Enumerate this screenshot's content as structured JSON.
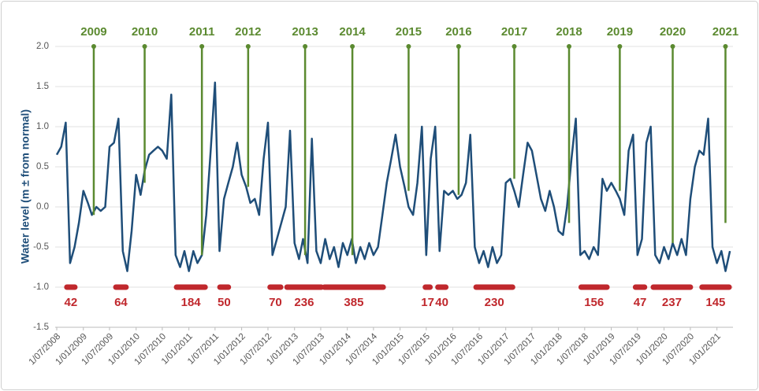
{
  "chart_data": {
    "type": "line",
    "y_label": "Water level (m ± from normal)",
    "xlim": [
      "2008-06-20",
      "2021-04-22"
    ],
    "ylim": [
      -1.5,
      2.0
    ],
    "yticks": [
      {
        "value": 2.0,
        "label": "2.0"
      },
      {
        "value": 1.5,
        "label": "1.5"
      },
      {
        "value": 1.0,
        "label": "1.0"
      },
      {
        "value": 0.5,
        "label": "0.5"
      },
      {
        "value": 0.0,
        "label": "0.0"
      },
      {
        "value": -0.5,
        "label": "-0.5"
      },
      {
        "value": -1.0,
        "label": "-1.0"
      },
      {
        "value": -1.5,
        "label": "-1.5"
      }
    ],
    "xticks": [
      {
        "value": "2008-07-01",
        "label": "1/07/2008"
      },
      {
        "value": "2009-01-01",
        "label": "1/01/2009"
      },
      {
        "value": "2009-07-01",
        "label": "1/07/2009"
      },
      {
        "value": "2010-01-01",
        "label": "1/01/2010"
      },
      {
        "value": "2010-07-01",
        "label": "1/07/2010"
      },
      {
        "value": "2011-01-01",
        "label": "1/01/2011"
      },
      {
        "value": "2011-07-01",
        "label": "1/07/2011"
      },
      {
        "value": "2012-01-01",
        "label": "1/01/2012"
      },
      {
        "value": "2012-07-01",
        "label": "1/07/2012"
      },
      {
        "value": "2013-01-01",
        "label": "1/01/2013"
      },
      {
        "value": "2013-07-01",
        "label": "1/07/2013"
      },
      {
        "value": "2014-01-01",
        "label": "1/01/2014"
      },
      {
        "value": "2014-07-01",
        "label": "1/07/2014"
      },
      {
        "value": "2015-01-01",
        "label": "1/01/2015"
      },
      {
        "value": "2015-07-01",
        "label": "1/07/2015"
      },
      {
        "value": "2016-01-01",
        "label": "1/01/2016"
      },
      {
        "value": "2016-07-01",
        "label": "1/07/2016"
      },
      {
        "value": "2017-01-01",
        "label": "1/01/2017"
      },
      {
        "value": "2017-07-01",
        "label": "1/07/2017"
      },
      {
        "value": "2018-01-01",
        "label": "1/01/2018"
      },
      {
        "value": "2018-07-01",
        "label": "1/07/2018"
      },
      {
        "value": "2019-01-01",
        "label": "1/01/2019"
      },
      {
        "value": "2019-07-01",
        "label": "1/07/2019"
      },
      {
        "value": "2020-01-01",
        "label": "1/01/2020"
      },
      {
        "value": "2020-07-01",
        "label": "1/07/2020"
      },
      {
        "value": "2021-01-01",
        "label": "1/01/2021"
      }
    ],
    "grid": true,
    "x": [
      "2008-07",
      "2008-08",
      "2008-09",
      "2008-10",
      "2008-11",
      "2008-12",
      "2009-01",
      "2009-02",
      "2009-03",
      "2009-04",
      "2009-05",
      "2009-06",
      "2009-07",
      "2009-08",
      "2009-09",
      "2009-10",
      "2009-11",
      "2009-12",
      "2010-01",
      "2010-02",
      "2010-03",
      "2010-04",
      "2010-05",
      "2010-06",
      "2010-07",
      "2010-08",
      "2010-09",
      "2010-10",
      "2010-11",
      "2010-12",
      "2011-01",
      "2011-02",
      "2011-03",
      "2011-04",
      "2011-05",
      "2011-06",
      "2011-07",
      "2011-08",
      "2011-09",
      "2011-10",
      "2011-11",
      "2011-12",
      "2012-01",
      "2012-02",
      "2012-03",
      "2012-04",
      "2012-05",
      "2012-06",
      "2012-07",
      "2012-08",
      "2012-09",
      "2012-10",
      "2012-11",
      "2012-12",
      "2013-01",
      "2013-02",
      "2013-03",
      "2013-04",
      "2013-05",
      "2013-06",
      "2013-07",
      "2013-08",
      "2013-09",
      "2013-10",
      "2013-11",
      "2013-12",
      "2014-01",
      "2014-02",
      "2014-03",
      "2014-04",
      "2014-05",
      "2014-06",
      "2014-07",
      "2014-08",
      "2014-09",
      "2014-10",
      "2014-11",
      "2014-12",
      "2015-01",
      "2015-02",
      "2015-03",
      "2015-04",
      "2015-05",
      "2015-06",
      "2015-07",
      "2015-08",
      "2015-09",
      "2015-10",
      "2015-11",
      "2015-12",
      "2016-01",
      "2016-02",
      "2016-03",
      "2016-04",
      "2016-05",
      "2016-06",
      "2016-07",
      "2016-08",
      "2016-09",
      "2016-10",
      "2016-11",
      "2016-12",
      "2017-01",
      "2017-02",
      "2017-03",
      "2017-04",
      "2017-05",
      "2017-06",
      "2017-07",
      "2017-08",
      "2017-09",
      "2017-10",
      "2017-11",
      "2017-12",
      "2018-01",
      "2018-02",
      "2018-03",
      "2018-04",
      "2018-05",
      "2018-06",
      "2018-07",
      "2018-08",
      "2018-09",
      "2018-10",
      "2018-11",
      "2018-12",
      "2019-01",
      "2019-02",
      "2019-03",
      "2019-04",
      "2019-05",
      "2019-06",
      "2019-07",
      "2019-08",
      "2019-09",
      "2019-10",
      "2019-11",
      "2019-12",
      "2020-01",
      "2020-02",
      "2020-03",
      "2020-04",
      "2020-05",
      "2020-06",
      "2020-07",
      "2020-08",
      "2020-09",
      "2020-10",
      "2020-11",
      "2020-12",
      "2021-01",
      "2021-02",
      "2021-03",
      "2021-04"
    ],
    "series": [
      {
        "color": "#1f4e79",
        "values": [
          0.65,
          0.75,
          1.05,
          -0.7,
          -0.5,
          -0.2,
          0.2,
          0.05,
          -0.1,
          0.0,
          -0.05,
          0.0,
          0.75,
          0.8,
          1.1,
          -0.55,
          -0.8,
          -0.3,
          0.4,
          0.15,
          0.45,
          0.65,
          0.7,
          0.75,
          0.7,
          0.6,
          1.4,
          -0.6,
          -0.75,
          -0.55,
          -0.8,
          -0.55,
          -0.7,
          -0.6,
          -0.1,
          0.7,
          1.55,
          -0.55,
          0.1,
          0.3,
          0.5,
          0.8,
          0.4,
          0.25,
          0.05,
          0.1,
          -0.1,
          0.6,
          1.05,
          -0.6,
          -0.4,
          -0.2,
          0.0,
          0.95,
          -0.45,
          -0.65,
          -0.4,
          -0.7,
          0.85,
          -0.55,
          -0.7,
          -0.4,
          -0.65,
          -0.5,
          -0.75,
          -0.45,
          -0.6,
          -0.4,
          -0.7,
          -0.5,
          -0.65,
          -0.45,
          -0.6,
          -0.5,
          -0.1,
          0.3,
          0.6,
          0.9,
          0.5,
          0.25,
          0.0,
          -0.1,
          0.3,
          1.0,
          -0.6,
          0.6,
          1.0,
          -0.55,
          0.2,
          0.15,
          0.2,
          0.1,
          0.15,
          0.3,
          0.9,
          -0.5,
          -0.7,
          -0.55,
          -0.75,
          -0.5,
          -0.7,
          -0.6,
          0.3,
          0.35,
          0.2,
          0.0,
          0.4,
          0.8,
          0.7,
          0.4,
          0.1,
          -0.05,
          0.2,
          0.0,
          -0.3,
          -0.35,
          0.0,
          0.6,
          1.1,
          -0.6,
          -0.55,
          -0.65,
          -0.5,
          -0.6,
          0.35,
          0.2,
          0.3,
          0.2,
          0.1,
          -0.1,
          0.7,
          0.9,
          -0.6,
          -0.4,
          0.8,
          1.0,
          -0.6,
          -0.7,
          -0.5,
          -0.65,
          -0.45,
          -0.6,
          -0.4,
          -0.6,
          0.1,
          0.5,
          0.7,
          0.65,
          1.1,
          -0.5,
          -0.7,
          -0.55,
          -0.8,
          -0.55
        ]
      }
    ],
    "annotation_color": "#5b8a30",
    "annotations": [
      {
        "label": "2009",
        "x": "2009-03-14",
        "y": -0.1
      },
      {
        "label": "2010",
        "x": "2010-03-01",
        "y": 0.3
      },
      {
        "label": "2011",
        "x": "2011-04-01",
        "y": -0.6
      },
      {
        "label": "2012",
        "x": "2012-02-15",
        "y": 0.25
      },
      {
        "label": "2013",
        "x": "2013-03-15",
        "y": -0.6
      },
      {
        "label": "2014",
        "x": "2014-02-05",
        "y": -0.6
      },
      {
        "label": "2015",
        "x": "2015-03-01",
        "y": 0.2
      },
      {
        "label": "2016",
        "x": "2016-02-10",
        "y": 0.15
      },
      {
        "label": "2017",
        "x": "2017-03-01",
        "y": 0.35
      },
      {
        "label": "2018",
        "x": "2018-03-15",
        "y": -0.2
      },
      {
        "label": "2019",
        "x": "2019-03-01",
        "y": 0.2
      },
      {
        "label": "2020",
        "x": "2020-03-01",
        "y": -0.45
      },
      {
        "label": "2021",
        "x": "2021-03-01",
        "y": -0.2
      }
    ],
    "period_color": "#c0282d",
    "period_level": -1.0,
    "periods": [
      {
        "start": "2008-09-09",
        "end": "2008-11-03",
        "value": 42
      },
      {
        "start": "2009-08-14",
        "end": "2009-10-23",
        "value": 64
      },
      {
        "start": "2010-10-08",
        "end": "2011-04-23",
        "value": 184
      },
      {
        "start": "2011-08-04",
        "end": "2011-10-01",
        "value": 50
      },
      {
        "start": "2012-07-16",
        "end": "2012-09-27",
        "value": 70
      },
      {
        "start": "2012-11-10",
        "end": "2013-07-05",
        "value": 236
      },
      {
        "start": "2013-07-27",
        "end": "2014-09-06",
        "value": 385
      },
      {
        "start": "2015-06-25",
        "end": "2015-07-27",
        "value": 17
      },
      {
        "start": "2015-09-20",
        "end": "2015-11-13",
        "value": 40
      },
      {
        "start": "2016-06-10",
        "end": "2017-02-17",
        "value": 230
      },
      {
        "start": "2018-06-07",
        "end": "2018-12-02",
        "value": 156
      },
      {
        "start": "2019-06-18",
        "end": "2019-08-19",
        "value": 47
      },
      {
        "start": "2019-10-19",
        "end": "2020-07-01",
        "value": 237
      },
      {
        "start": "2020-09-20",
        "end": "2021-03-26",
        "value": 145
      }
    ]
  }
}
